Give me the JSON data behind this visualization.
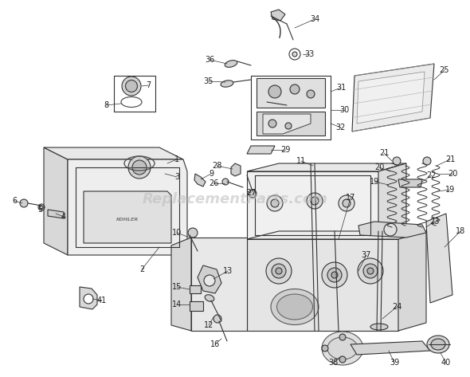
{
  "figsize": [
    5.9,
    4.73
  ],
  "dpi": 100,
  "bg": "#ffffff",
  "lc": "#333333",
  "wm_text": "ReplacementParts.com",
  "wm_color": "#bbbbbb",
  "wm_fs": 13,
  "lfs": 7.0,
  "label_color": "#222222"
}
